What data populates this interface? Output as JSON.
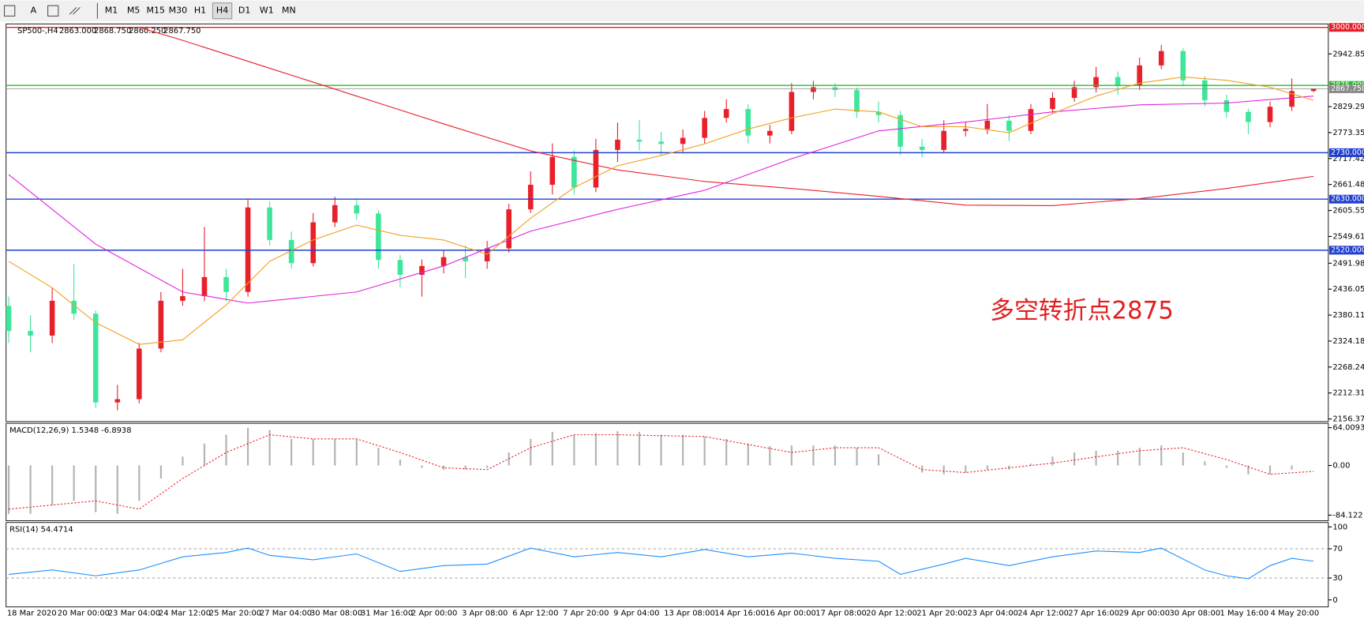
{
  "toolbar": {
    "tools": [
      "A"
    ],
    "timeframes": [
      "M1",
      "M5",
      "M15",
      "M30",
      "H1",
      "H4",
      "D1",
      "W1",
      "MN"
    ],
    "active": "H4"
  },
  "chart_data": [
    {
      "type": "candlestick",
      "title": "SP500-,H4",
      "info": [
        "2863.000",
        "2868.750",
        "2860.250",
        "2867.750"
      ],
      "annotation": "多空转折点2875",
      "up_color": "#e8202a",
      "down_color": "#3ee69a",
      "ylim": [
        2150.75,
        3007.5
      ],
      "yticks": [
        {
          "value": 2942.855,
          "label": "2942.855"
        },
        {
          "value": 2829.29,
          "label": "2829.290"
        },
        {
          "value": 2773.355,
          "label": "2773.355"
        },
        {
          "value": 2717.42,
          "label": "2717.420"
        },
        {
          "value": 2661.485,
          "label": "2661.485"
        },
        {
          "value": 2605.55,
          "label": "2605.550"
        },
        {
          "value": 2549.615,
          "label": "2549.615"
        },
        {
          "value": 2491.985,
          "label": "2491.985"
        },
        {
          "value": 2436.05,
          "label": "2436.050"
        },
        {
          "value": 2380.115,
          "label": "2380.115"
        },
        {
          "value": 2324.18,
          "label": "2324.180"
        },
        {
          "value": 2268.245,
          "label": "2268.245"
        },
        {
          "value": 2212.31,
          "label": "2212.310"
        },
        {
          "value": 2156.375,
          "label": "2156.375"
        }
      ],
      "price_levels": [
        {
          "value": 3000,
          "label": "3000.000",
          "color": "#e8202a"
        },
        {
          "value": 2875,
          "label": "2875.000",
          "color": "#22c02a"
        },
        {
          "value": 2867.75,
          "label": "2867.750",
          "color": "#8a8a8a"
        },
        {
          "value": 2730,
          "label": "2730.000",
          "color": "#2040d0"
        },
        {
          "value": 2630,
          "label": "2630.000",
          "color": "#2040d0"
        },
        {
          "value": 2520,
          "label": "2520.000",
          "color": "#2040d0"
        }
      ],
      "open": [
        2400,
        2346,
        2336,
        2411,
        2383,
        2192,
        2199,
        2308,
        2411,
        2421,
        2462,
        2430,
        2612,
        2542,
        2492,
        2580,
        2617,
        2599,
        2499,
        2467,
        2486,
        2505,
        2496,
        2524,
        2608,
        2661,
        2721,
        2655,
        2736,
        2758,
        2754,
        2749,
        2762,
        2805,
        2824,
        2767,
        2777,
        2861,
        2871,
        2865,
        2818,
        2811,
        2743,
        2736,
        2777,
        2781,
        2799,
        2777,
        2824,
        2848,
        2871,
        2893,
        2874,
        2918,
        2949,
        2886,
        2843,
        2818,
        2796,
        2829,
        2863
      ],
      "high": [
        2420,
        2380,
        2440,
        2490,
        2390,
        2230,
        2320,
        2430,
        2480,
        2570,
        2480,
        2630,
        2625,
        2560,
        2600,
        2635,
        2630,
        2605,
        2510,
        2500,
        2520,
        2530,
        2540,
        2620,
        2690,
        2750,
        2735,
        2760,
        2795,
        2800,
        2775,
        2780,
        2820,
        2845,
        2835,
        2790,
        2880,
        2885,
        2880,
        2870,
        2840,
        2820,
        2760,
        2800,
        2795,
        2835,
        2810,
        2835,
        2860,
        2885,
        2915,
        2905,
        2935,
        2962,
        2955,
        2895,
        2855,
        2825,
        2840,
        2890,
        2868.75
      ],
      "low": [
        2320,
        2300,
        2320,
        2370,
        2180,
        2175,
        2190,
        2300,
        2400,
        2410,
        2410,
        2420,
        2530,
        2480,
        2485,
        2570,
        2585,
        2480,
        2440,
        2420,
        2470,
        2460,
        2480,
        2515,
        2600,
        2640,
        2640,
        2645,
        2710,
        2735,
        2725,
        2730,
        2750,
        2795,
        2750,
        2750,
        2770,
        2845,
        2850,
        2805,
        2795,
        2725,
        2720,
        2730,
        2765,
        2770,
        2755,
        2770,
        2815,
        2840,
        2860,
        2855,
        2865,
        2910,
        2875,
        2830,
        2805,
        2770,
        2785,
        2820,
        2860.25
      ],
      "close": [
        2346,
        2336,
        2411,
        2383,
        2192,
        2199,
        2308,
        2411,
        2421,
        2462,
        2430,
        2612,
        2542,
        2492,
        2580,
        2617,
        2599,
        2499,
        2467,
        2486,
        2505,
        2496,
        2524,
        2608,
        2661,
        2721,
        2655,
        2736,
        2758,
        2754,
        2749,
        2762,
        2805,
        2824,
        2767,
        2777,
        2861,
        2871,
        2865,
        2818,
        2811,
        2743,
        2736,
        2777,
        2781,
        2799,
        2777,
        2824,
        2848,
        2871,
        2893,
        2874,
        2918,
        2949,
        2886,
        2843,
        2818,
        2796,
        2829,
        2863,
        2867.75
      ],
      "series": [
        {
          "color": "#e8202a",
          "x": [
            6,
            8,
            12,
            16,
            20,
            24,
            28,
            32,
            36,
            40,
            44,
            48,
            52,
            56,
            60
          ],
          "values": [
            3000,
            2972,
            2912,
            2852,
            2792,
            2734,
            2693,
            2668,
            2653,
            2636,
            2617,
            2616,
            2631,
            2653,
            2679
          ]
        },
        {
          "color": "#e020e0",
          "x": [
            0,
            4,
            8,
            11,
            16,
            20,
            24,
            28,
            32,
            36,
            40,
            44,
            48,
            52,
            56,
            60
          ],
          "values": [
            2683,
            2533,
            2430,
            2406,
            2430,
            2486,
            2561,
            2608,
            2649,
            2717,
            2777,
            2796,
            2818,
            2833,
            2837,
            2852
          ]
        },
        {
          "color": "#f0a020",
          "x": [
            0,
            2,
            4,
            6,
            8,
            10,
            12,
            14,
            16,
            18,
            20,
            22,
            24,
            26,
            28,
            30,
            32,
            34,
            36,
            38,
            40,
            42,
            44,
            46,
            48,
            50,
            52,
            54,
            56,
            58,
            60
          ],
          "values": [
            2496,
            2439,
            2364,
            2317,
            2327,
            2402,
            2496,
            2542,
            2574,
            2552,
            2542,
            2511,
            2589,
            2655,
            2702,
            2724,
            2749,
            2781,
            2805,
            2824,
            2818,
            2786,
            2786,
            2773,
            2814,
            2852,
            2880,
            2893,
            2886,
            2871,
            2843
          ]
        }
      ],
      "time_labels": [
        "18 Mar 2020",
        "20 Mar 00:00",
        "23 Mar 04:00",
        "24 Mar 12:00",
        "25 Mar 20:00",
        "27 Mar 04:00",
        "30 Mar 08:00",
        "31 Mar 16:00",
        "2 Apr 00:00",
        "3 Apr 08:00",
        "6 Apr 12:00",
        "7 Apr 20:00",
        "9 Apr 04:00",
        "13 Apr 08:00",
        "14 Apr 16:00",
        "16 Apr 00:00",
        "17 Apr 08:00",
        "20 Apr 12:00",
        "21 Apr 20:00",
        "23 Apr 04:00",
        "24 Apr 12:00",
        "27 Apr 16:00",
        "29 Apr 00:00",
        "30 Apr 08:00",
        "1 May 16:00",
        "4 May 20:00"
      ]
    },
    {
      "type": "macd",
      "title": "MACD(12,26,9) 1.5348 -6.8938",
      "color": "#b4b4b4",
      "ylim": [
        -93.7,
        71.4
      ],
      "yticks": [
        {
          "value": 64.0093,
          "label": "64.0093"
        },
        {
          "value": 0,
          "label": "0.00"
        },
        {
          "value": -84.122,
          "label": "-84.122"
        }
      ],
      "values": [
        -82,
        -82,
        -67,
        -60,
        -79,
        -82,
        -60,
        -22,
        15,
        37,
        52,
        64,
        60,
        45,
        45,
        45,
        45,
        30,
        10,
        -4,
        -7,
        -7,
        -4,
        22,
        45,
        57,
        52,
        55,
        58,
        57,
        52,
        52,
        49,
        45,
        37,
        33,
        34,
        34,
        34,
        30,
        19,
        0,
        -12,
        -15,
        -12,
        -7,
        -7,
        3,
        15,
        22,
        25,
        25,
        30,
        34,
        22,
        7,
        -4,
        -15,
        -15,
        -7,
        0
      ],
      "series": [
        {
          "color": "#e8202a",
          "x": [
            0,
            4,
            6,
            8,
            10,
            12,
            14,
            16,
            18,
            20,
            22,
            24,
            26,
            28,
            32,
            36,
            38,
            40,
            42,
            44,
            48,
            52,
            54,
            56,
            58,
            60
          ],
          "values": [
            -74,
            -60,
            -74,
            -22,
            22,
            52,
            45,
            45,
            22,
            -4,
            -7,
            30,
            52,
            52,
            49,
            22,
            30,
            30,
            -7,
            -12,
            4,
            25,
            30,
            10,
            -15,
            -10
          ]
        }
      ]
    },
    {
      "type": "rsi",
      "title": "RSI(14) 54.4714",
      "ylim": [
        -9.6,
        106
      ],
      "yticks": [
        100,
        70,
        30,
        0
      ],
      "levels": [
        70,
        30
      ],
      "series": [
        {
          "color": "#1e90ff",
          "x": [
            0,
            2,
            4,
            6,
            8,
            10,
            11,
            12,
            14,
            16,
            18,
            20,
            22,
            24,
            26,
            28,
            30,
            32,
            34,
            36,
            38,
            40,
            41,
            43,
            44,
            46,
            48,
            50,
            52,
            53,
            55,
            56,
            57,
            58,
            59,
            60
          ],
          "values": [
            35,
            41,
            33,
            41,
            59,
            65,
            71,
            61,
            55,
            63,
            39,
            47,
            49,
            71,
            59,
            65,
            59,
            69,
            59,
            64,
            57,
            53,
            35,
            49,
            57,
            47,
            59,
            67,
            65,
            71,
            41,
            33,
            29,
            47,
            57,
            53
          ]
        }
      ]
    }
  ]
}
